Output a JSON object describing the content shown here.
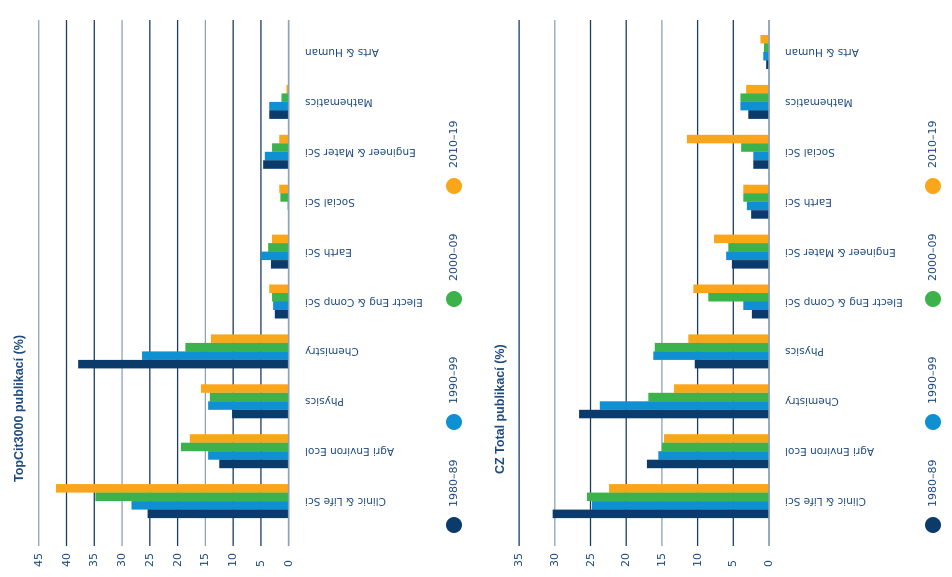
{
  "colors": {
    "1980-89": "#0b3b6a",
    "1990-99": "#0e90d2",
    "2000-09": "#3cb34a",
    "2010-19": "#f9a61a",
    "grid_dark": "#1c3c66",
    "grid_light": "#8da2b8",
    "text": "#1d4a80"
  },
  "legend": [
    {
      "label": "1980–89",
      "series": "1980-89"
    },
    {
      "label": "1990–99",
      "series": "1990-99"
    },
    {
      "label": "2000–09",
      "series": "2000-09"
    },
    {
      "label": "2010–19",
      "series": "2010-19"
    }
  ],
  "chart_data": [
    {
      "type": "bar",
      "orientation": "rotated",
      "title": "TopCit3000 publikací (%)",
      "xlabel": "",
      "ylabel": "TopCit3000 publikací (%)",
      "ylim": [
        0,
        45
      ],
      "ticks": [
        "0",
        "5",
        "10",
        "15",
        "20",
        "25",
        "30",
        "35",
        "40",
        "45"
      ],
      "grid": true,
      "legend_placement": "right",
      "categories": [
        "Clinic & Life Sci",
        "Agri Environ Ecol",
        "Physics",
        "Chemistry",
        "Electr Eng & Comp Sci",
        "Earth Sci",
        "Social Sci",
        "Engineer & Mater Sci",
        "Mathematics",
        "Arts & Human"
      ],
      "series": [
        {
          "name": "1980–89",
          "key": "1980-89",
          "values": [
            25.4,
            12.5,
            10.2,
            37.9,
            2.5,
            3.2,
            0.1,
            4.6,
            3.5,
            0.1
          ]
        },
        {
          "name": "1990–99",
          "key": "1990-99",
          "values": [
            28.3,
            14.5,
            14.5,
            26.4,
            2.8,
            5.0,
            0.2,
            4.3,
            3.5,
            0.0
          ]
        },
        {
          "name": "2000–09",
          "key": "2000-09",
          "values": [
            34.8,
            19.4,
            14.2,
            18.6,
            3.0,
            3.7,
            1.5,
            3.0,
            1.3,
            0.0
          ]
        },
        {
          "name": "2010–19",
          "key": "2010-19",
          "values": [
            41.9,
            17.8,
            15.8,
            14.0,
            3.5,
            3.0,
            1.7,
            1.7,
            0.4,
            0.0
          ]
        }
      ]
    },
    {
      "type": "bar",
      "orientation": "rotated",
      "title": "CZ Total publikací (%)",
      "xlabel": "",
      "ylabel": "CZ Total publikací (%)",
      "ylim": [
        0,
        35
      ],
      "ticks": [
        "0",
        "5",
        "10",
        "15",
        "20",
        "25",
        "30",
        "35"
      ],
      "grid": true,
      "legend_placement": "right",
      "categories": [
        "Clinic & Life Sci",
        "Agri Environ Ecol",
        "Chemistry",
        "Physics",
        "Electr Eng & Comp Sci",
        "Engineer & Mater Sci",
        "Earth Sci",
        "Social Sci",
        "Mathematics",
        "Arts & Human"
      ],
      "series": [
        {
          "name": "1980–89",
          "key": "1980-89",
          "values": [
            30.3,
            17.1,
            26.6,
            10.4,
            2.4,
            5.2,
            2.5,
            2.2,
            2.9,
            0.4
          ]
        },
        {
          "name": "1990–99",
          "key": "1990-99",
          "values": [
            24.8,
            15.5,
            23.7,
            16.2,
            3.6,
            6.0,
            3.1,
            2.2,
            4.0,
            0.8
          ]
        },
        {
          "name": "2000–09",
          "key": "2000-09",
          "values": [
            25.5,
            15.0,
            16.9,
            16.0,
            8.5,
            5.7,
            3.6,
            3.9,
            4.0,
            0.7
          ]
        },
        {
          "name": "2010–19",
          "key": "2010-19",
          "values": [
            22.4,
            14.7,
            13.3,
            11.3,
            10.6,
            7.7,
            3.6,
            11.5,
            3.2,
            1.2
          ]
        }
      ]
    }
  ]
}
